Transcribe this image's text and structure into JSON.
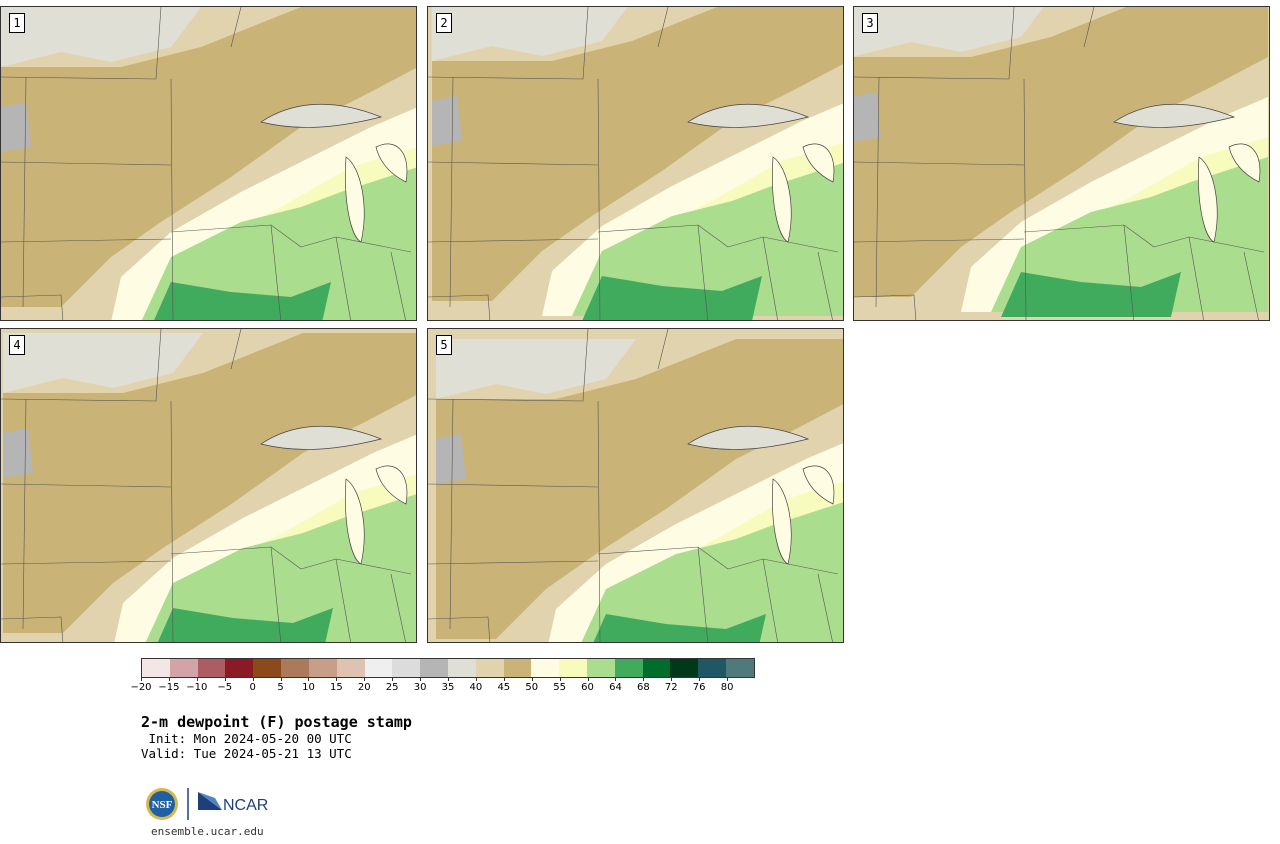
{
  "panels": [
    {
      "label": "1"
    },
    {
      "label": "2"
    },
    {
      "label": "3"
    },
    {
      "label": "4"
    },
    {
      "label": "5"
    }
  ],
  "colorbar": {
    "colors": [
      "#f3e6e6",
      "#d4a3a8",
      "#ad5c62",
      "#8a1a25",
      "#8c4a1a",
      "#aa7a5a",
      "#c89e88",
      "#dfc3b2",
      "#efefef",
      "#dcdcdc",
      "#b5b5b5",
      "#e0dfd6",
      "#e1d3ae",
      "#cab377",
      "#fefde3",
      "#f7fbbd",
      "#aadd8e",
      "#41ab5d",
      "#006d2c",
      "#00391a",
      "#1f5864",
      "#4e7a7c"
    ],
    "tick_labels": [
      "−20",
      "−15",
      "−10",
      "−5",
      "0",
      "5",
      "10",
      "15",
      "20",
      "25",
      "30",
      "35",
      "40",
      "45",
      "50",
      "55",
      "60",
      "64",
      "68",
      "72",
      "76",
      "80"
    ]
  },
  "title": "2-m dewpoint (F) postage stamp",
  "init_line": " Init: Mon 2024-05-20 00 UTC",
  "valid_line": "Valid: Tue 2024-05-21 13 UTC",
  "logos": {
    "nsf_label": "NSF",
    "ncar_label": "NCAR"
  },
  "site": "ensemble.ucar.edu"
}
